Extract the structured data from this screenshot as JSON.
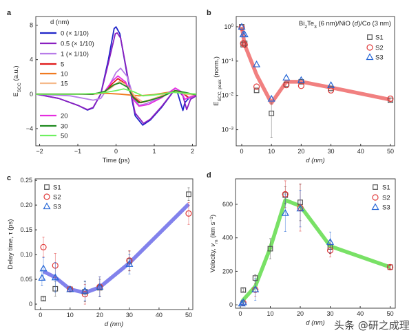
{
  "watermark": "头条 @研之成理",
  "colors": {
    "S1": "#555555",
    "S2": "#e03a3a",
    "S3": "#2566d6",
    "fit_b": "#f07272",
    "fit_c": "#7474ea",
    "fit_d": "#6ade55"
  },
  "chart_data": [
    {
      "panel": "a",
      "type": "line",
      "xlabel": "Time (ps)",
      "ylabel": [
        {
          "t": "E"
        },
        {
          "t": "SCC",
          "sub": true
        },
        {
          "t": " (a.u.)"
        }
      ],
      "xlim": [
        -2.1,
        2.1
      ],
      "ylim": [
        -6,
        9
      ],
      "xticks": [
        -2,
        -1,
        0,
        1,
        2
      ],
      "xtick_labels": [
        "−2",
        "−1",
        "0",
        "1",
        "2"
      ],
      "yticks": [
        -4,
        0,
        4,
        8
      ],
      "ytick_labels": [
        "−4",
        "0",
        "4",
        "8"
      ],
      "legend_title": "d (nm)",
      "legend_placement": "top-left",
      "series": [
        {
          "name": "0 (× 1/10)",
          "color": "#1f24c8",
          "x": [
            -2.1,
            -1.5,
            -1.0,
            -0.75,
            -0.6,
            -0.4,
            -0.2,
            -0.05,
            0.0,
            0.1,
            0.3,
            0.5,
            0.7,
            0.9,
            1.2,
            1.5,
            1.6,
            1.75,
            1.8,
            1.9,
            2.1
          ],
          "y": [
            0,
            -0.5,
            -1.3,
            -1.85,
            -1.6,
            0,
            4,
            7.6,
            7.8,
            7.0,
            2.0,
            -2.5,
            -3.6,
            -3.0,
            -1.5,
            0.3,
            0.3,
            -1.9,
            -1.0,
            -0.5,
            -0.2
          ]
        },
        {
          "name": "0.5 (× 1/10)",
          "color": "#8a1fc0",
          "x": [
            -2.1,
            -1.5,
            -1.0,
            -0.75,
            -0.6,
            -0.4,
            -0.2,
            -0.02,
            0.03,
            0.12,
            0.3,
            0.5,
            0.72,
            0.9,
            1.2,
            1.5,
            1.62,
            1.75,
            1.85,
            1.95,
            2.1
          ],
          "y": [
            0,
            -0.5,
            -1.3,
            -1.8,
            -1.55,
            0,
            3.6,
            7.0,
            7.1,
            6.5,
            2.2,
            -2.2,
            -3.4,
            -2.9,
            -1.4,
            0.3,
            0.4,
            -0.2,
            -1.8,
            -0.6,
            -0.2
          ]
        },
        {
          "name": "1 (× 1/10)",
          "color": "#b77ce8",
          "x": [
            -2.1,
            -1.2,
            -0.6,
            -0.4,
            -0.2,
            0.0,
            0.12,
            0.3,
            0.45,
            0.6,
            0.8,
            1.1,
            1.5,
            1.7,
            1.9,
            2.1
          ],
          "y": [
            0,
            -0.2,
            -0.7,
            -0.5,
            0.8,
            2.5,
            3.0,
            2.0,
            -0.3,
            -1.3,
            -1.1,
            -0.5,
            0.5,
            0.3,
            -0.5,
            -0.1
          ]
        },
        {
          "name": "5",
          "color": "#e01818",
          "x": [
            -2.1,
            -0.6,
            -0.3,
            -0.1,
            0.05,
            0.25,
            0.45,
            0.65,
            0.9,
            1.2,
            1.5,
            1.7,
            1.9,
            2.1
          ],
          "y": [
            0,
            0,
            0.2,
            1.2,
            1.8,
            1.2,
            -0.3,
            -1.0,
            -0.7,
            -0.2,
            0.4,
            0.3,
            -0.4,
            -0.1
          ]
        },
        {
          "name": "10",
          "color": "#f07a20",
          "x": [
            -2.1,
            -1.0,
            -0.3,
            0.1,
            0.6,
            1.0,
            1.5,
            1.8,
            2.1
          ],
          "y": [
            0,
            0,
            0.1,
            0,
            -0.2,
            -0.05,
            0.3,
            0.1,
            0
          ]
        },
        {
          "name": "15",
          "color": "#f5b98a",
          "x": [
            -2.1,
            -0.5,
            -0.2,
            0.1,
            0.3,
            0.5,
            0.7,
            1.0,
            1.5,
            1.8,
            2.1
          ],
          "y": [
            0,
            0,
            0.5,
            1.5,
            1.0,
            -0.3,
            -0.9,
            -0.5,
            0.4,
            0,
            -0.1
          ]
        },
        {
          "name": "20",
          "color": "#e52de0",
          "x": [
            -2.1,
            -0.6,
            -0.3,
            -0.1,
            0.05,
            0.25,
            0.45,
            0.6,
            0.85,
            1.2,
            1.55,
            1.7,
            1.8,
            1.9,
            2.1
          ],
          "y": [
            0,
            0,
            0.3,
            1.5,
            2.1,
            1.4,
            -0.6,
            -1.4,
            -1.2,
            -0.4,
            0.7,
            0.3,
            -0.6,
            -0.4,
            -0.1
          ]
        },
        {
          "name": "30",
          "color": "#1f8a1f",
          "x": [
            -2.1,
            -0.6,
            -0.3,
            -0.05,
            0.1,
            0.3,
            0.45,
            0.6,
            0.9,
            1.2,
            1.55,
            1.8,
            2.1
          ],
          "y": [
            0,
            0,
            0.3,
            1.1,
            1.3,
            0.8,
            -0.4,
            -1.0,
            -0.7,
            -0.3,
            0.4,
            0.2,
            -0.1
          ]
        },
        {
          "name": "50",
          "color": "#6ef060",
          "x": [
            -2.1,
            -1.0,
            -0.4,
            0,
            0.2,
            0.45,
            0.7,
            1.0,
            1.5,
            1.8,
            2.1
          ],
          "y": [
            0,
            0,
            0.1,
            0.4,
            0.6,
            0.3,
            -0.2,
            -0.1,
            0.2,
            0.1,
            0
          ]
        }
      ]
    },
    {
      "panel": "b",
      "type": "scatter",
      "yscale": "log",
      "xlabel": "d (nm)",
      "ylabel": [
        {
          "t": "E"
        },
        {
          "t": "SCC, peak",
          "sub": true
        },
        {
          "t": " (norm.)"
        }
      ],
      "annotation": [
        {
          "t": "Bi"
        },
        {
          "t": "2",
          "sub": true
        },
        {
          "t": "Te"
        },
        {
          "t": "3",
          "sub": true
        },
        {
          "t": " (6 nm)/NiO ("
        },
        {
          "t": "d",
          "it": true
        },
        {
          "t": ")/Co (3 nm)"
        }
      ],
      "xlim": [
        -1.85,
        51.4
      ],
      "ylim_log10": [
        -3.47,
        0.3
      ],
      "xticks": [
        0,
        10,
        20,
        30,
        40,
        50
      ],
      "xtick_labels": [
        "0",
        "10",
        "20",
        "30",
        "40",
        "50"
      ],
      "yticks_log10": [
        0,
        -1,
        -2,
        -3
      ],
      "ytick_base": "10",
      "ytick_exponents": [
        "0",
        "−1",
        "−2",
        "−3"
      ],
      "legend_placement": "top-right",
      "fit": {
        "x": [
          0,
          1,
          5,
          10,
          15,
          20,
          30,
          50
        ],
        "y": [
          1.0,
          0.3,
          0.04,
          0.006,
          0.025,
          0.025,
          0.017,
          0.0075
        ]
      },
      "series": [
        {
          "name": "S1",
          "marker": "square",
          "x": [
            0,
            0.5,
            1,
            5,
            10,
            15,
            20,
            30,
            50
          ],
          "y": [
            1.0,
            0.3,
            0.33,
            0.014,
            0.003,
            0.021,
            0.025,
            0.016,
            0.0072
          ],
          "err_low": [
            null,
            null,
            null,
            null,
            0.0006,
            null,
            null,
            null,
            null
          ],
          "err_high": [
            null,
            null,
            null,
            null,
            0.006,
            null,
            null,
            null,
            null
          ]
        },
        {
          "name": "S2",
          "marker": "circle",
          "x": [
            0,
            0.5,
            1,
            5,
            15,
            20,
            30,
            50
          ],
          "y": [
            0.95,
            0.33,
            0.3,
            0.018,
            0.02,
            0.019,
            0.014,
            0.008
          ]
        },
        {
          "name": "S3",
          "marker": "triangle",
          "x": [
            0,
            0.5,
            1,
            5,
            10,
            15,
            20,
            30
          ],
          "y": [
            1.0,
            0.6,
            0.6,
            0.08,
            0.008,
            0.033,
            0.028,
            0.02
          ]
        }
      ]
    },
    {
      "panel": "c",
      "type": "scatter",
      "xlabel": "d (nm)",
      "ylabel": [
        {
          "t": "Delay time, τ (ps)"
        }
      ],
      "xlim": [
        -1.8,
        51.4
      ],
      "ylim": [
        -0.011,
        0.253
      ],
      "xticks": [
        0,
        10,
        20,
        30,
        40,
        50
      ],
      "xtick_labels": [
        "0",
        "10",
        "20",
        "30",
        "40",
        "50"
      ],
      "yticks": [
        0,
        0.05,
        0.1,
        0.15,
        0.2,
        0.25
      ],
      "ytick_labels": [
        "0",
        "0.05",
        "0.10",
        "0.15",
        "0.20",
        "0.25"
      ],
      "legend_placement": "top-left",
      "fit": {
        "x": [
          1,
          5,
          10,
          15,
          20,
          30,
          50
        ],
        "y": [
          0.066,
          0.054,
          0.03,
          0.023,
          0.034,
          0.083,
          0.202
        ]
      },
      "series": [
        {
          "name": "S1",
          "marker": "square",
          "x": [
            1,
            5,
            10,
            15,
            20,
            30,
            50
          ],
          "y": [
            0.011,
            0.031,
            0.03,
            0.025,
            0.033,
            0.087,
            0.222
          ],
          "err": [
            0.003,
            0.015,
            0.004,
            0.02,
            0.017,
            0.02,
            0.013
          ]
        },
        {
          "name": "S2",
          "marker": "circle",
          "x": [
            1,
            5,
            10,
            15,
            20,
            30,
            50
          ],
          "y": [
            0.115,
            0.078,
            0.03,
            0.02,
            0.035,
            0.088,
            0.183
          ],
          "err": [
            0.02,
            0.024,
            0.004,
            0.02,
            0.02,
            0.02,
            0.022
          ]
        },
        {
          "name": "S3",
          "marker": "triangle",
          "x": [
            0.5,
            1,
            5,
            10,
            15,
            20,
            30
          ],
          "y": [
            0.053,
            0.072,
            0.054,
            0.03,
            0.027,
            0.035,
            0.081
          ],
          "err": [
            0.016,
            0.022,
            0.03,
            0.004,
            0.02,
            0.02,
            0.02
          ]
        }
      ]
    },
    {
      "panel": "d",
      "type": "scatter",
      "xlabel": "d (nm)",
      "ylabel": [
        {
          "t": "Velocity, "
        },
        {
          "t": "v",
          "it": true
        },
        {
          "t": "m",
          "sub": true
        },
        {
          "t": " (km s"
        },
        {
          "t": "−1",
          "sup": true
        },
        {
          "t": ")"
        }
      ],
      "xlim": [
        -1.6,
        51.7
      ],
      "ylim": [
        -20,
        752
      ],
      "xticks": [
        0,
        10,
        20,
        30,
        40,
        50
      ],
      "xtick_labels": [
        "0",
        "10",
        "20",
        "30",
        "40",
        "50"
      ],
      "yticks": [
        0,
        200,
        400,
        600
      ],
      "ytick_labels": [
        "0",
        "200",
        "400",
        "600"
      ],
      "legend_placement": "top-right",
      "fit": {
        "x": [
          0.5,
          1,
          5,
          10,
          15,
          20,
          30,
          50
        ],
        "y": [
          15,
          30,
          110,
          340,
          625,
          590,
          350,
          225
        ]
      },
      "series": [
        {
          "name": "S1",
          "marker": "square",
          "x": [
            1,
            5,
            10,
            15,
            20,
            30,
            50
          ],
          "y": [
            88,
            160,
            335,
            655,
            612,
            345,
            225
          ],
          "err": [
            8,
            20,
            60,
            50,
            110,
            40,
            10
          ]
        },
        {
          "name": "S2",
          "marker": "circle",
          "x": [
            1,
            5,
            15,
            20,
            30,
            50
          ],
          "y": [
            12,
            90,
            660,
            580,
            325,
            225
          ],
          "err": [
            5,
            40,
            80,
            140,
            40,
            10
          ]
        },
        {
          "name": "S3",
          "marker": "triangle",
          "x": [
            0.5,
            1,
            5,
            15,
            20,
            30
          ],
          "y": [
            8,
            15,
            92,
            548,
            575,
            375
          ],
          "err": [
            5,
            10,
            65,
            110,
            110,
            60
          ]
        }
      ]
    }
  ],
  "panel_letters": [
    "a",
    "b",
    "c",
    "d"
  ]
}
